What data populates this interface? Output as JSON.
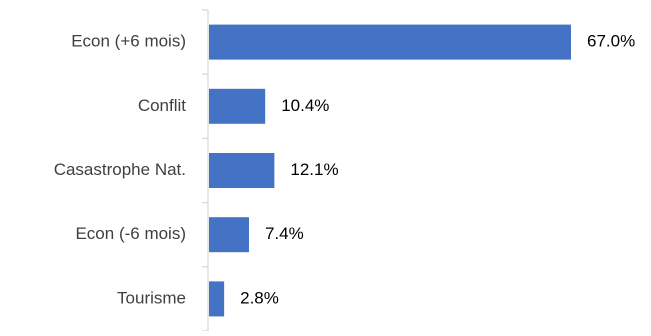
{
  "chart_data": {
    "type": "bar",
    "orientation": "horizontal",
    "categories": [
      "Econ (+6 mois)",
      "Conflit",
      "Casastrophe Nat.",
      "Econ (-6 mois)",
      "Tourisme"
    ],
    "values": [
      67.0,
      10.4,
      12.1,
      7.4,
      2.8
    ],
    "value_labels": [
      "67.0%",
      "10.4%",
      "12.1%",
      "7.4%",
      "2.8%"
    ],
    "title": "",
    "xlabel": "",
    "ylabel": "",
    "xlim": [
      0,
      70
    ],
    "grid": false,
    "bar_color": "#4472C4",
    "text_color": "#404040",
    "axis_color": "#D9D9D9"
  }
}
